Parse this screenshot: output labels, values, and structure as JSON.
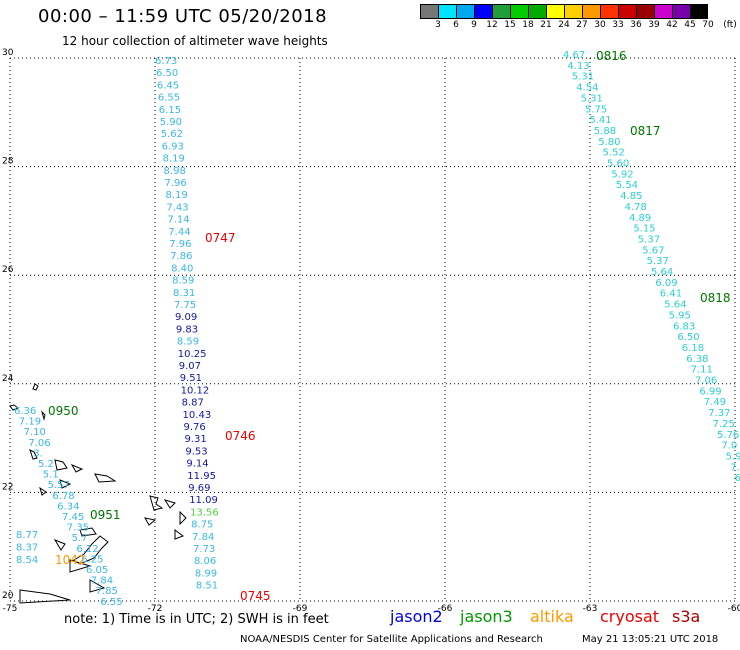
{
  "header": {
    "title": "00:00 – 11:59 UTC 05/20/2018",
    "subtitle": "12 hour collection of altimeter wave heights"
  },
  "legend": {
    "colors": [
      "#777777",
      "#00e5ff",
      "#00a8f0",
      "#0000ff",
      "#1f9e3b",
      "#00cc00",
      "#00aa00",
      "#ffff00",
      "#ffd000",
      "#ff9900",
      "#ff3300",
      "#cc0000",
      "#990000",
      "#cc00cc",
      "#7700aa",
      "#000000"
    ],
    "labels": [
      "3",
      "6",
      "9",
      "12",
      "15",
      "18",
      "21",
      "24",
      "27",
      "30",
      "33",
      "36",
      "39",
      "42",
      "45",
      "70",
      "(ft)"
    ]
  },
  "axes": {
    "x_ticks": [
      "-75",
      "-72",
      "-69",
      "-66",
      "-63",
      "-60"
    ],
    "y_ticks": [
      "30",
      "28",
      "26",
      "24",
      "22",
      "20"
    ]
  },
  "tracks": {
    "track_a": {
      "color_light": "#3ab8e6",
      "color_dark": "#1515a8",
      "color_green": "#55cc44",
      "values": [
        "6.73",
        "6.50",
        "6.45",
        "6.55",
        "6.15",
        "5.90",
        "5.62",
        "6.93",
        "8.19",
        "8.98",
        "7.96",
        "8.19",
        "7.43",
        "7.14",
        "7.44",
        "7.96",
        "7.86",
        "8.40",
        "8.59",
        "8.31",
        "7.75",
        "9.09",
        "9.83",
        "8.59",
        "10.25",
        "9.07",
        "9.51",
        "10.12",
        "8.87",
        "10.43",
        "9.76",
        "9.31",
        "9.53",
        "9.14",
        "11.95",
        "9.69",
        "11.09",
        "13.56",
        "8.75",
        "7.84",
        "7.73",
        "8.06",
        "8.99",
        "8.51"
      ],
      "times": [
        "0747",
        "0746",
        "0745"
      ]
    },
    "track_b": {
      "color": "#2cd0d0",
      "values": [
        "4.67",
        "4.13",
        "5.31",
        "4.54",
        "5.31",
        "5.75",
        "5.41",
        "5.88",
        "5.80",
        "5.52",
        "5.60",
        "5.92",
        "5.54",
        "4.85",
        "4.78",
        "4.89",
        "5.15",
        "5.37",
        "5.67",
        "5.37",
        "5.64",
        "6.09",
        "6.41",
        "5.64",
        "5.95",
        "6.83",
        "6.50",
        "6.18",
        "6.38",
        "7.11",
        "7.06",
        "6.99",
        "7.49",
        "7.37",
        "7.25",
        "5.76",
        "7.0",
        "5.9",
        "7.",
        "6"
      ],
      "times": [
        "0816",
        "0817",
        "0818"
      ]
    },
    "track_c": {
      "color": "#3ab8e6",
      "values": [
        "6.36",
        "7.19",
        "7.10",
        "7.06",
        "3.",
        "5.2",
        "5.1",
        "5.57",
        "6.78",
        "6.34",
        "7.45",
        "7.35",
        "5.7",
        "6.12",
        "6.25",
        "6.05",
        "7.84",
        "7.85",
        "6.55"
      ],
      "times": [
        "0950",
        "0951"
      ]
    },
    "track_d": {
      "color": "#3ab8e6",
      "values": [
        "8.77",
        "8.37",
        "8.54"
      ],
      "times": [
        "1042"
      ]
    }
  },
  "footer": {
    "note": "note: 1) Time is in UTC; 2) SWH is in feet",
    "satellites": [
      {
        "name": "jason2",
        "color": "#0000ee"
      },
      {
        "name": "jason3",
        "color": "#009900"
      },
      {
        "name": "altika",
        "color": "#ff9900"
      },
      {
        "name": "cryosat",
        "color": "#ee0000"
      },
      {
        "name": "s3a",
        "color": "#aa0000"
      }
    ],
    "credit": "NOAA/NESDIS Center for Satellite Applications and Research",
    "timestamp": "May 21 13:05:21 UTC 2018"
  }
}
